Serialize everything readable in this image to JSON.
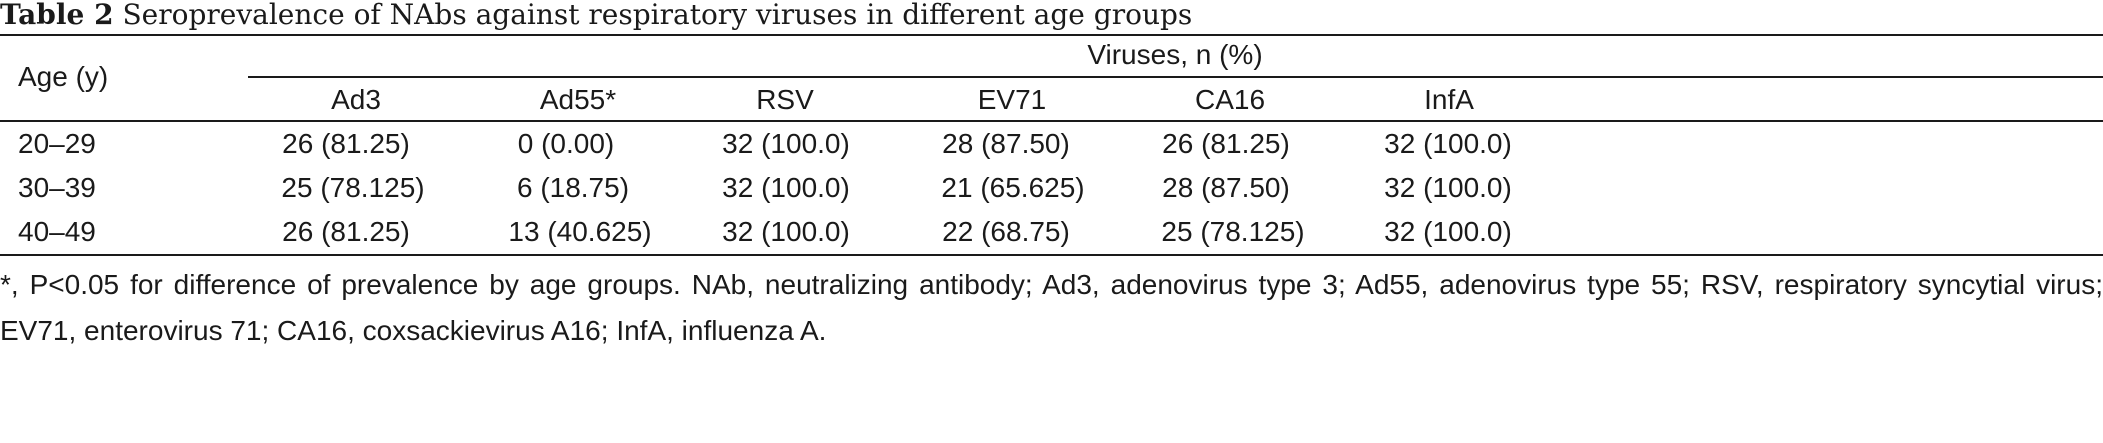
{
  "caption": {
    "label": "Table 2",
    "text": "Seroprevalence of NAbs against respiratory viruses in different age groups"
  },
  "header": {
    "row_label": "Age (y)",
    "group_label": "Viruses, n (%)",
    "columns": [
      "Ad3",
      "Ad55*",
      "RSV",
      "EV71",
      "CA16",
      "InfA"
    ]
  },
  "rows": [
    {
      "age": "20–29",
      "values": [
        "26 (81.25)",
        "0 (0.00)",
        "32 (100.0)",
        "28 (87.50)",
        "26 (81.25)",
        "32 (100.0)"
      ]
    },
    {
      "age": "30–39",
      "values": [
        "25 (78.125)",
        "6 (18.75)",
        "32 (100.0)",
        "21 (65.625)",
        "28 (87.50)",
        "32 (100.0)"
      ]
    },
    {
      "age": "40–49",
      "values": [
        "26 (81.25)",
        "13 (40.625)",
        "32 (100.0)",
        "22 (68.75)",
        "25 (78.125)",
        "32 (100.0)"
      ]
    }
  ],
  "footnote": "*, P<0.05 for difference of prevalence by age groups. NAb, neutralizing antibody; Ad3, adenovirus type 3; Ad55, adenovirus type 55; RSV, respiratory syncytial virus; EV71, enterovirus 71; CA16, coxsackievirus A16; InfA, influenza A."
}
